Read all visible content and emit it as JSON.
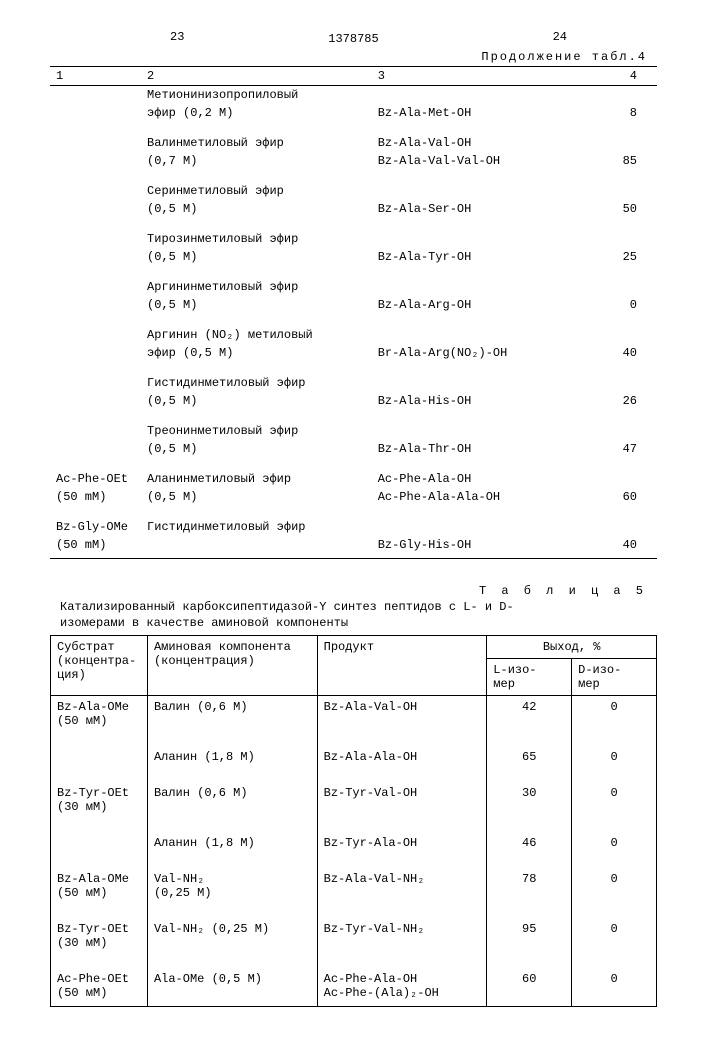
{
  "page": {
    "left_no": "23",
    "right_no": "24",
    "patent_no": "1378785",
    "cont_label": "Продолжение табл.4"
  },
  "table4": {
    "headers": [
      "1",
      "2",
      "3",
      "4"
    ],
    "rows": [
      {
        "c1": "",
        "c2a": "Метионинизопропиловый",
        "c2b": "эфир (0,2 М)",
        "c3": "Bz-Ala-Met-OH",
        "c4": "8"
      },
      {
        "c1": "",
        "c2a": "Валинметиловый эфир",
        "c2b": "(0,7 М)",
        "c3a": "Bz-Ala-Val-OH",
        "c3b": "Bz-Ala-Val-Val-OH",
        "c4": "85"
      },
      {
        "c1": "",
        "c2a": "Серинметиловый эфир",
        "c2b": "(0,5 М)",
        "c3": "Bz-Ala-Ser-OH",
        "c4": "50"
      },
      {
        "c1": "",
        "c2a": "Тирозинметиловый эфир",
        "c2b": "(0,5 М)",
        "c3": "Bz-Ala-Tyr-OH",
        "c4": "25"
      },
      {
        "c1": "",
        "c2a": "Аргининметиловый эфир",
        "c2b": "(0,5 М)",
        "c3": "Bz-Ala-Arg-OH",
        "c4": "0"
      },
      {
        "c1": "",
        "c2a": "Аргинин (NO₂) метиловый",
        "c2b": "эфир (0,5 М)",
        "c3": "Br-Ala-Arg(NO₂)-OH",
        "c4": "40"
      },
      {
        "c1": "",
        "c2a": "Гистидинметиловый эфир",
        "c2b": "(0,5 М)",
        "c3": "Bz-Ala-His-OH",
        "c4": "26"
      },
      {
        "c1": "",
        "c2a": "Треонинметиловый эфир",
        "c2b": "(0,5 М)",
        "c3": "Bz-Ala-Thr-OH",
        "c4": "47"
      },
      {
        "c1a": "Ac-Phe-OEt",
        "c1b": "(50 mM)",
        "c2a": "Аланинметиловый эфир",
        "c2b": "(0,5 М)",
        "c3a": "Ac-Phe-Ala-OH",
        "c3b": "Ac-Phe-Ala-Ala-OH",
        "c4": "60"
      },
      {
        "c1a": "Bz-Gly-OMe",
        "c1b": "(50 mM)",
        "c2a": "Гистидинметиловый эфир",
        "c2b": "",
        "c3": "Bz-Gly-His-OH",
        "c4": "40"
      }
    ]
  },
  "table5": {
    "label": "Т а б л и ц а  5",
    "caption": "Катализированный карбоксипептидазой-Y синтез пептидов с L- и D-\nизомерами в качестве аминовой компоненты",
    "headers": {
      "substrate": "Субстрат\n(концентра-\nция)",
      "amine": "Аминовая компонента\n(концентрация)",
      "product": "Продукт",
      "yield": "Выход, %",
      "l": "L-изо-\nмер",
      "d": "D-изо-\nмер"
    },
    "rows": [
      {
        "s1": "Bz-Ala-OMe",
        "s2": "(50 мМ)",
        "a": "Валин (0,6 М)",
        "p": "Bz-Ala-Val-OH",
        "l": "42",
        "d": "0"
      },
      {
        "s1": "",
        "s2": "",
        "a": "Аланин (1,8 М)",
        "p": "Bz-Ala-Ala-OH",
        "l": "65",
        "d": "0"
      },
      {
        "s1": "Bz-Tyr-OEt",
        "s2": "(30 мМ)",
        "a": "Валин (0,6 М)",
        "p": "Bz-Tyr-Val-OH",
        "l": "30",
        "d": "0"
      },
      {
        "s1": "",
        "s2": "",
        "a": "Аланин (1,8 М)",
        "p": "Bz-Tyr-Ala-OH",
        "l": "46",
        "d": "0"
      },
      {
        "s1": "Bz-Ala-OMe",
        "s2": "(50 мМ)",
        "a": "Val-NH₂\n(0,25 М)",
        "p": "Bz-Ala-Val-NH₂",
        "l": "78",
        "d": "0"
      },
      {
        "s1": "Bz-Tyr-OEt",
        "s2": "(30 мМ)",
        "a": "Val-NH₂ (0,25 М)",
        "p": "Bz-Tyr-Val-NH₂",
        "l": "95",
        "d": "0"
      },
      {
        "s1": "Ac-Phe-OEt",
        "s2": "(50 мМ)",
        "a": "Ala-OMe (0,5 М)",
        "p": "Ac-Phe-Ala-OH\nAc-Phe-(Ala)₂-OH",
        "l": "60",
        "d": "0"
      }
    ]
  }
}
